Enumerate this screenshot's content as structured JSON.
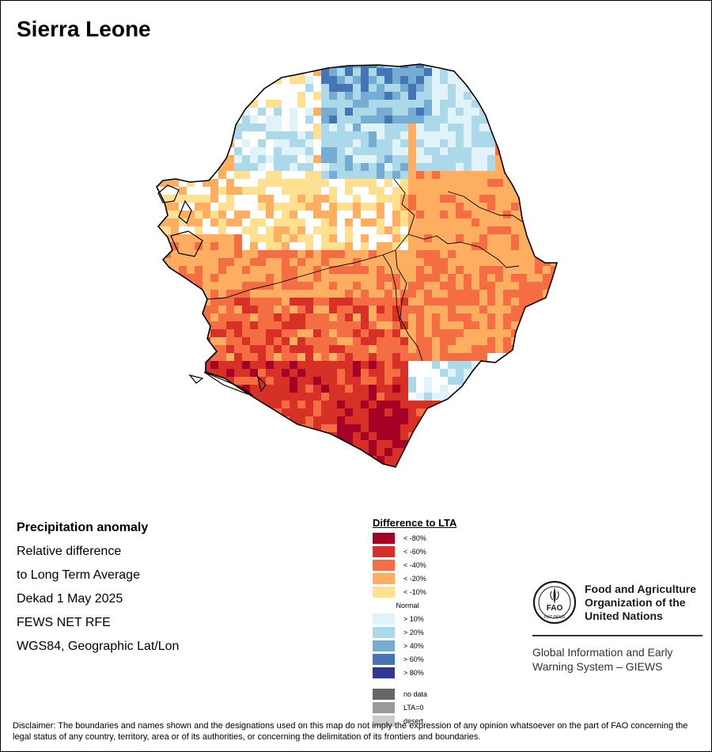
{
  "title": "Sierra Leone",
  "info": {
    "lines": [
      "Precipitation anomaly",
      "Relative difference",
      "to Long Term Average",
      "Dekad 1 May 2025",
      "FEWS NET RFE",
      "WGS84, Geographic Lat/Lon"
    ]
  },
  "legend": {
    "title": "Difference to LTA",
    "classes": [
      {
        "label": "< -80%",
        "color": "#a50026"
      },
      {
        "label": "< -60%",
        "color": "#d73027"
      },
      {
        "label": "< -40%",
        "color": "#f46d43"
      },
      {
        "label": "< -20%",
        "color": "#fdae61"
      },
      {
        "label": "< -10%",
        "color": "#fee090"
      },
      {
        "label": "Normal",
        "color": "#ffffff"
      },
      {
        "label": "> 10%",
        "color": "#e0f3f8"
      },
      {
        "label": "> 20%",
        "color": "#abd9e9"
      },
      {
        "label": "> 40%",
        "color": "#74add1"
      },
      {
        "label": "> 60%",
        "color": "#4575b4"
      },
      {
        "label": "> 80%",
        "color": "#313695"
      }
    ],
    "extra": [
      {
        "label": "no data",
        "color": "#666666"
      },
      {
        "label": "LTA=0",
        "color": "#999999"
      },
      {
        "label": "desert",
        "color": "#cccccc"
      }
    ]
  },
  "organization": {
    "name_lines": [
      "Food and Agriculture",
      "Organization of the",
      "United Nations"
    ],
    "logo_letters": "FAO",
    "logo_motto": "FIAT PANIS",
    "system_lines": [
      "Global Information and Early",
      "Warning System – GIEWS"
    ]
  },
  "disclaimer": "Disclaimer: The boundaries and names shown and the designations used on this map do not imply the expression of any opinion whatsoever on the part of FAO concerning the legal status of any country, territory, area or of its authorities, or concerning the delimitation of its frontiers and boundaries."
}
